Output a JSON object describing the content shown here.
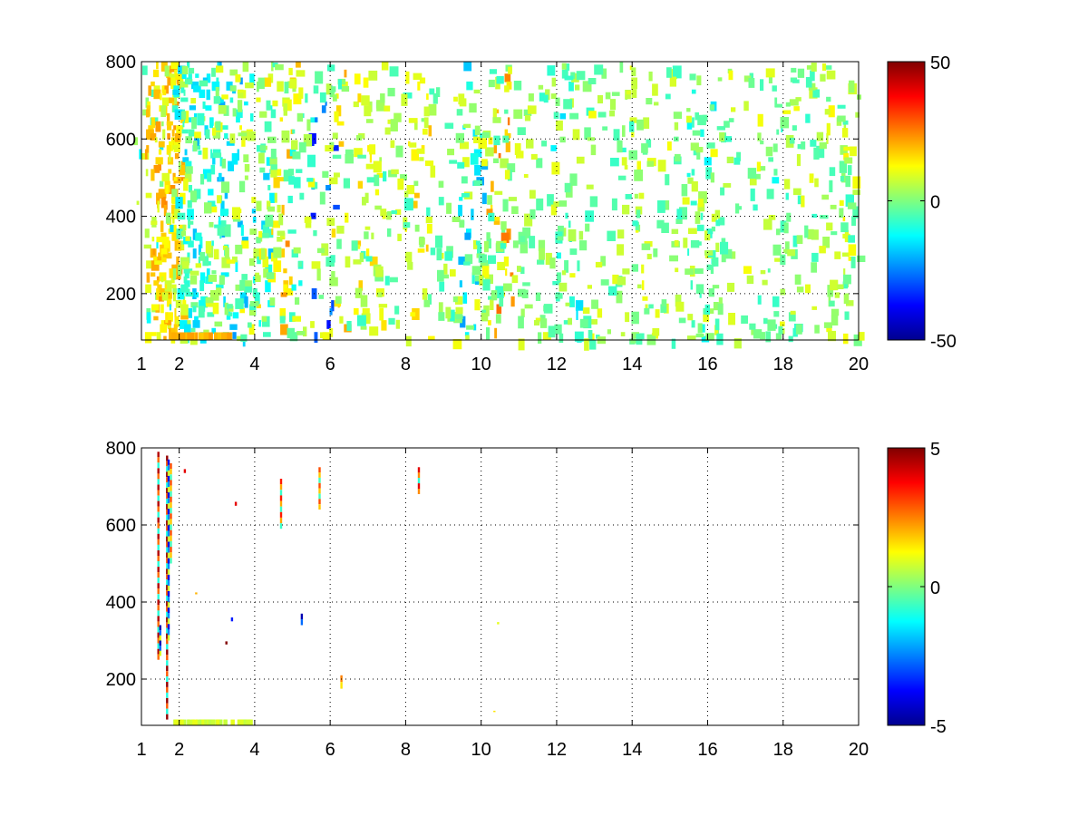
{
  "chart_data": [
    {
      "type": "heatmap",
      "title": "",
      "xlabel": "",
      "ylabel": "",
      "xlim": [
        1,
        20
      ],
      "ylim": [
        80,
        800
      ],
      "xticks": [
        1,
        2,
        4,
        6,
        8,
        10,
        12,
        14,
        16,
        18,
        20
      ],
      "yticks": [
        200,
        400,
        600,
        800
      ],
      "xtick_labels": [
        "1",
        "2",
        "4",
        "6",
        "8",
        "10",
        "12",
        "14",
        "16",
        "18",
        "20"
      ],
      "ytick_labels": [
        "200",
        "400",
        "600",
        "800"
      ],
      "grid": true,
      "colormap": "jet",
      "clim": [
        -50,
        50
      ],
      "colorbar_ticks": [
        50,
        0,
        -50
      ],
      "colorbar_tick_labels": [
        "50",
        "0",
        "-50"
      ],
      "background": "#ffffff",
      "bands": [
        {
          "x": 1.05,
          "density": 0.25,
          "value": 5
        },
        {
          "x": 1.2,
          "density": 0.2,
          "value": -8
        },
        {
          "x": 1.45,
          "density": 0.55,
          "value": 15
        },
        {
          "x": 1.6,
          "density": 0.9,
          "value": 18
        },
        {
          "x": 1.7,
          "density": 0.85,
          "value": 14
        },
        {
          "x": 1.85,
          "density": 0.5,
          "value": 8
        },
        {
          "x": 2.1,
          "density": 0.45,
          "value": -10
        },
        {
          "x": 2.4,
          "density": 0.4,
          "value": -12
        },
        {
          "x": 2.7,
          "density": 0.45,
          "value": -14
        },
        {
          "x": 3.0,
          "density": 0.4,
          "value": -10
        },
        {
          "x": 3.4,
          "density": 0.45,
          "value": -16
        },
        {
          "x": 3.7,
          "density": 0.35,
          "value": 6
        },
        {
          "x": 4.05,
          "density": 0.4,
          "value": -12
        },
        {
          "x": 4.4,
          "density": 0.3,
          "value": 9
        },
        {
          "x": 4.75,
          "density": 0.3,
          "value": 18
        },
        {
          "x": 5.2,
          "density": 0.25,
          "value": -8
        },
        {
          "x": 5.75,
          "density": 0.2,
          "value": -30
        },
        {
          "x": 6.3,
          "density": 0.2,
          "value": 15
        },
        {
          "x": 7.0,
          "density": 0.3,
          "value": 10
        },
        {
          "x": 8.3,
          "density": 0.3,
          "value": 12
        },
        {
          "x": 9.7,
          "density": 0.35,
          "value": -15
        },
        {
          "x": 10.45,
          "density": 0.35,
          "value": 20
        },
        {
          "x": 12.2,
          "density": 0.25,
          "value": -10
        },
        {
          "x": 14.0,
          "density": 0.3,
          "value": 6
        },
        {
          "x": 15.8,
          "density": 0.3,
          "value": -8
        },
        {
          "x": 17.9,
          "density": 0.3,
          "value": -6
        },
        {
          "x": 19.4,
          "density": 0.3,
          "value": 8
        }
      ],
      "bottom_band": {
        "x_from": 1.7,
        "x_to": 3.3,
        "y_from": 80,
        "y_to": 100,
        "value": 20
      }
    },
    {
      "type": "heatmap",
      "title": "",
      "xlabel": "",
      "ylabel": "",
      "xlim": [
        1,
        20
      ],
      "ylim": [
        80,
        800
      ],
      "xticks": [
        1,
        2,
        4,
        6,
        8,
        10,
        12,
        14,
        16,
        18,
        20
      ],
      "yticks": [
        200,
        400,
        600,
        800
      ],
      "xtick_labels": [
        "1",
        "2",
        "4",
        "6",
        "8",
        "10",
        "12",
        "14",
        "16",
        "18",
        "20"
      ],
      "ytick_labels": [
        "200",
        "400",
        "600",
        "800"
      ],
      "grid": true,
      "colormap": "jet",
      "clim": [
        -5,
        5
      ],
      "colorbar_ticks": [
        5,
        0,
        -5
      ],
      "colorbar_tick_labels": [
        "5",
        "0",
        "-5"
      ],
      "background": "#ffffff",
      "segments": [
        {
          "x": 1.45,
          "y_from": 250,
          "y_to": 790,
          "value": 4.5
        },
        {
          "x": 1.5,
          "y_from": 260,
          "y_to": 340,
          "value": -4.5
        },
        {
          "x": 1.68,
          "y_from": 95,
          "y_to": 780,
          "value": 4.8
        },
        {
          "x": 1.72,
          "y_from": 300,
          "y_to": 770,
          "value": -4.0
        },
        {
          "x": 1.78,
          "y_from": 500,
          "y_to": 760,
          "value": 3.0
        },
        {
          "x": 2.15,
          "y_from": 735,
          "y_to": 745,
          "value": 4.0
        },
        {
          "x": 2.45,
          "y_from": 420,
          "y_to": 425,
          "value": 2.0
        },
        {
          "x": 3.25,
          "y_from": 290,
          "y_to": 298,
          "value": 5.0
        },
        {
          "x": 3.4,
          "y_from": 350,
          "y_to": 360,
          "value": -3.5
        },
        {
          "x": 3.5,
          "y_from": 650,
          "y_to": 660,
          "value": 4.0
        },
        {
          "x": 4.7,
          "y_from": 590,
          "y_to": 720,
          "value": 3.5
        },
        {
          "x": 5.25,
          "y_from": 340,
          "y_to": 370,
          "value": -4.5
        },
        {
          "x": 5.72,
          "y_from": 640,
          "y_to": 750,
          "value": 3.0
        },
        {
          "x": 6.3,
          "y_from": 175,
          "y_to": 210,
          "value": 2.5
        },
        {
          "x": 8.35,
          "y_from": 680,
          "y_to": 750,
          "value": 4.0
        },
        {
          "x": 10.45,
          "y_from": 342,
          "y_to": 348,
          "value": 1.0
        },
        {
          "x": 10.35,
          "y_from": 115,
          "y_to": 118,
          "value": 1.5
        }
      ],
      "bottom_band": {
        "x_from": 1.8,
        "x_to": 3.9,
        "y_from": 80,
        "y_to": 95,
        "value": 0.8
      }
    }
  ]
}
